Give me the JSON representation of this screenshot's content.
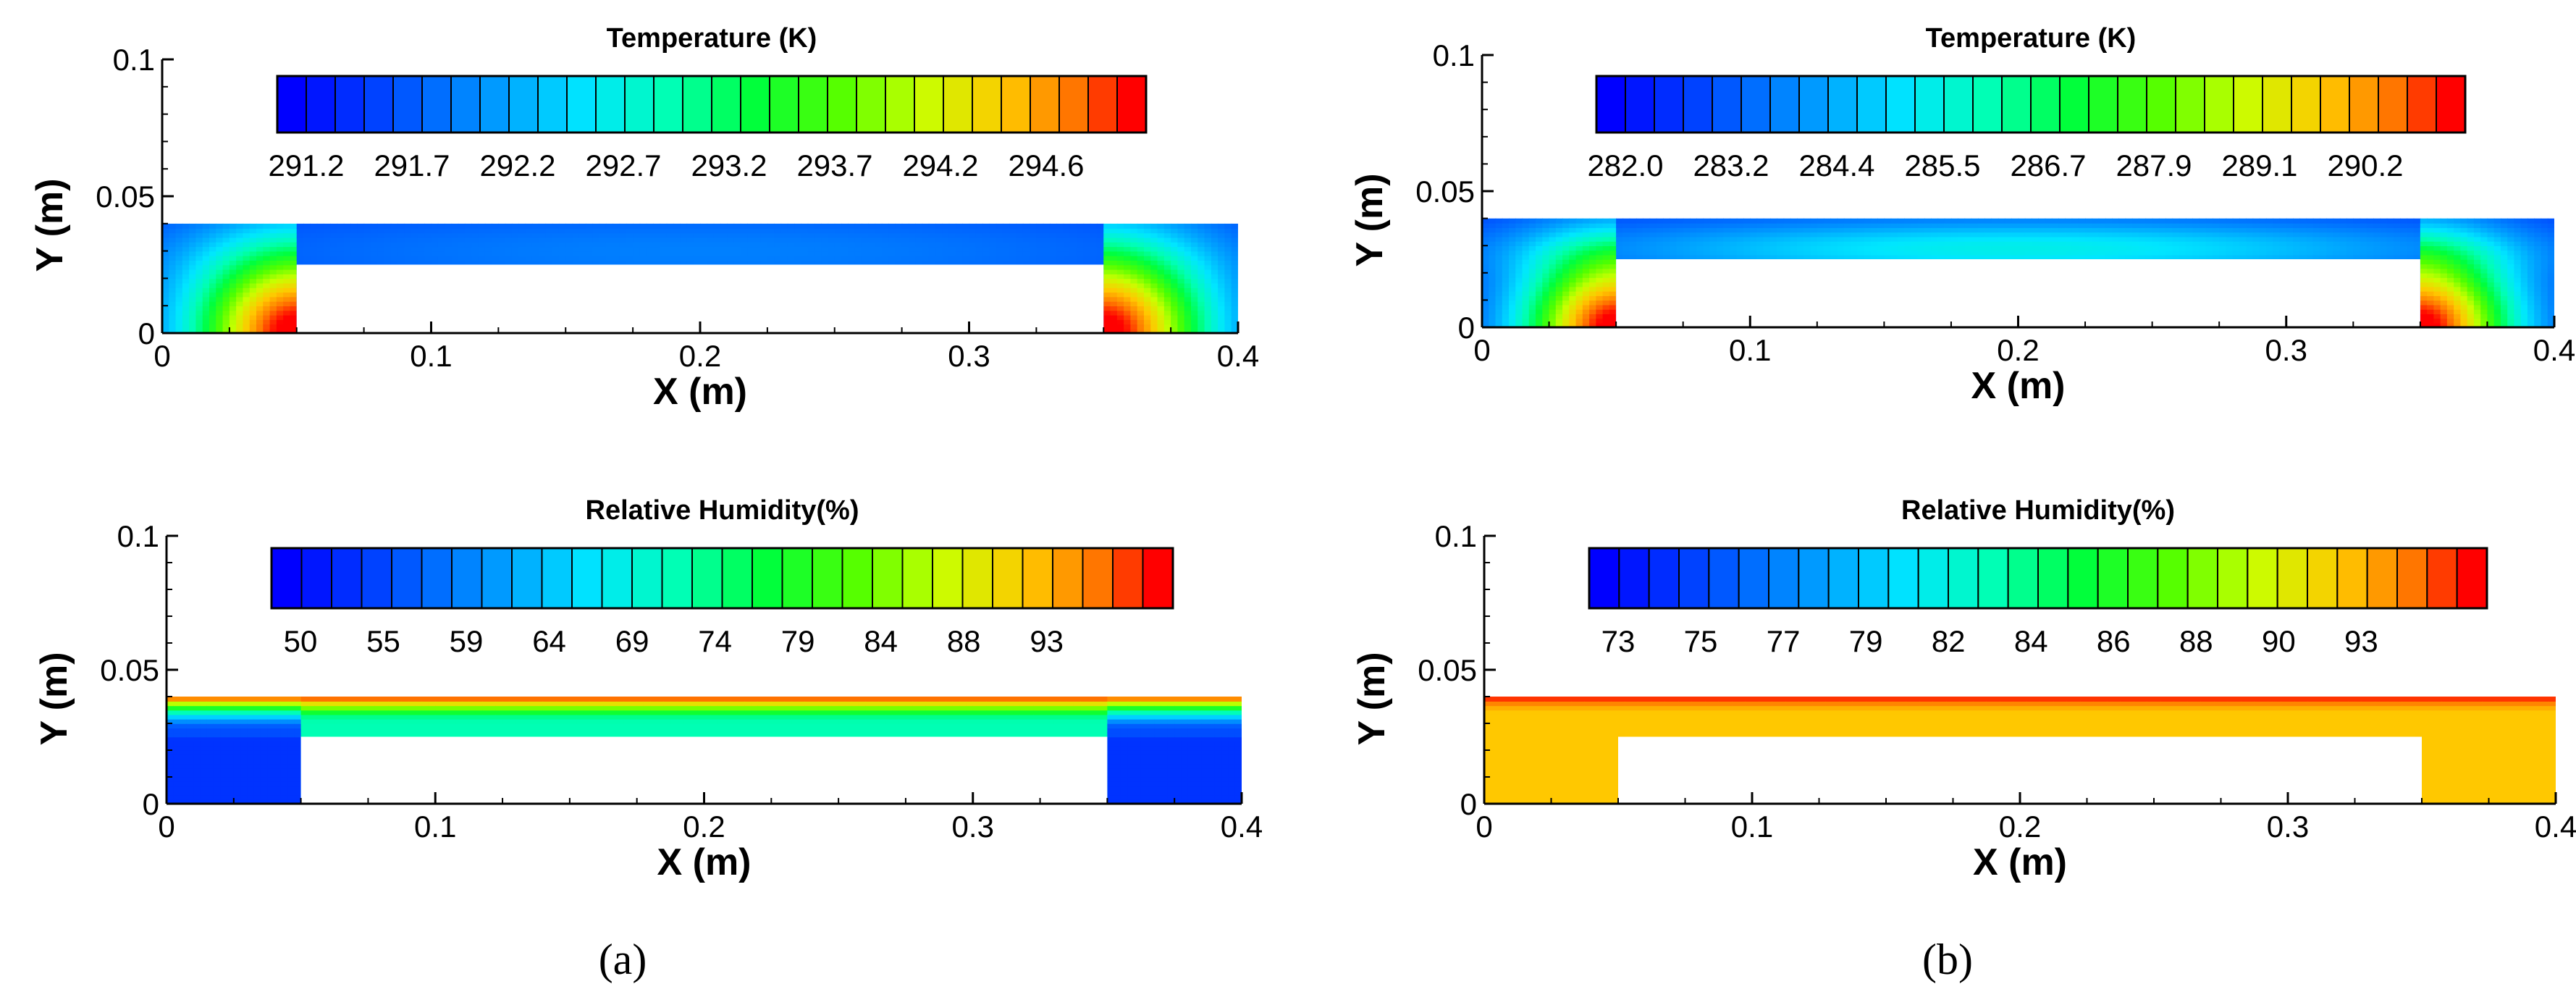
{
  "chart_data": [
    {
      "type": "heatmap",
      "column": "a",
      "title": "Temperature (K)",
      "xlabel": "X (m)",
      "ylabel": "Y (m)",
      "xlim": [
        0,
        0.4
      ],
      "ylim": [
        0,
        0.1
      ],
      "xticks": [
        "0",
        "0.1",
        "0.2",
        "0.3",
        "0.4"
      ],
      "yticks": [
        "0",
        "0.05",
        "0.1"
      ],
      "colorbar_labels": [
        "291.2",
        "291.7",
        "292.2",
        "292.7",
        "293.2",
        "293.7",
        "294.2",
        "294.6"
      ],
      "channel": {
        "x0": 0,
        "x1": 0.4,
        "y0": 0,
        "y1": 0.04
      },
      "solid_block": {
        "x0": 0.05,
        "x1": 0.35,
        "y0": 0,
        "y1": 0.025
      },
      "field": "temperature_a"
    },
    {
      "type": "heatmap",
      "column": "b",
      "title": "Temperature (K)",
      "xlabel": "X (m)",
      "ylabel": "Y (m)",
      "xlim": [
        0,
        0.4
      ],
      "ylim": [
        0,
        0.1
      ],
      "xticks": [
        "0",
        "0.1",
        "0.2",
        "0.3",
        "0.4"
      ],
      "yticks": [
        "0",
        "0.05",
        "0.1"
      ],
      "colorbar_labels": [
        "282.0",
        "283.2",
        "284.4",
        "285.5",
        "286.7",
        "287.9",
        "289.1",
        "290.2"
      ],
      "channel": {
        "x0": 0,
        "x1": 0.4,
        "y0": 0,
        "y1": 0.04
      },
      "solid_block": {
        "x0": 0.05,
        "x1": 0.35,
        "y0": 0,
        "y1": 0.025
      },
      "field": "temperature_b"
    },
    {
      "type": "heatmap",
      "column": "a",
      "title": "Relative Humidity(%)",
      "xlabel": "X (m)",
      "ylabel": "Y (m)",
      "xlim": [
        0,
        0.4
      ],
      "ylim": [
        0,
        0.1
      ],
      "xticks": [
        "0",
        "0.1",
        "0.2",
        "0.3",
        "0.4"
      ],
      "yticks": [
        "0",
        "0.05",
        "0.1"
      ],
      "colorbar_labels": [
        "50",
        "55",
        "59",
        "64",
        "69",
        "74",
        "79",
        "84",
        "88",
        "93"
      ],
      "channel": {
        "x0": 0,
        "x1": 0.4,
        "y0": 0,
        "y1": 0.04
      },
      "solid_block": {
        "x0": 0.05,
        "x1": 0.35,
        "y0": 0,
        "y1": 0.025
      },
      "field": "humidity_a"
    },
    {
      "type": "heatmap",
      "column": "b",
      "title": "Relative Humidity(%)",
      "xlabel": "X (m)",
      "ylabel": "Y (m)",
      "xlim": [
        0,
        0.4
      ],
      "ylim": [
        0,
        0.1
      ],
      "xticks": [
        "0",
        "0.1",
        "0.2",
        "0.3",
        "0.4"
      ],
      "yticks": [
        "0",
        "0.05",
        "0.1"
      ],
      "colorbar_labels": [
        "73",
        "75",
        "77",
        "79",
        "82",
        "84",
        "86",
        "88",
        "90",
        "93"
      ],
      "channel": {
        "x0": 0,
        "x1": 0.4,
        "y0": 0,
        "y1": 0.04
      },
      "solid_block": {
        "x0": 0.05,
        "x1": 0.35,
        "y0": 0,
        "y1": 0.025
      },
      "field": "humidity_b"
    }
  ],
  "captions": {
    "a": "(a)",
    "b": "(b)"
  },
  "colorbar_colors": [
    "#0000ff",
    "#0055ff",
    "#00aaff",
    "#00e5ff",
    "#00ffcc",
    "#00ff66",
    "#33ff00",
    "#99ff00",
    "#e5ff00",
    "#ffcc00",
    "#ff8000",
    "#ff0000"
  ]
}
